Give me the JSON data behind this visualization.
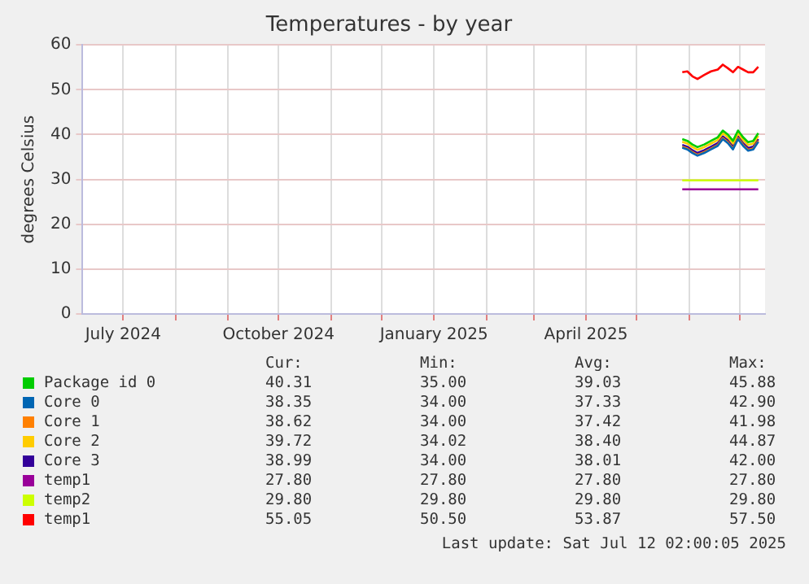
{
  "chart_data": {
    "type": "line",
    "title": "Temperatures - by year",
    "ylabel": "degrees Celsius",
    "x": [
      "2025-05-28",
      "2025-05-31",
      "2025-06-03",
      "2025-06-06",
      "2025-06-10",
      "2025-06-14",
      "2025-06-18",
      "2025-06-21",
      "2025-06-24",
      "2025-06-27",
      "2025-06-30",
      "2025-07-03",
      "2025-07-06",
      "2025-07-09",
      "2025-07-12"
    ],
    "series": [
      {
        "name": "Package id 0",
        "color": "#00cc00",
        "values": [
          39.0,
          38.6,
          37.8,
          37.2,
          37.8,
          38.6,
          39.4,
          40.9,
          40.0,
          38.6,
          40.9,
          39.4,
          38.3,
          38.6,
          40.3
        ]
      },
      {
        "name": "Core 0",
        "color": "#0066b3",
        "values": [
          37.1,
          36.7,
          35.9,
          35.3,
          35.9,
          36.7,
          37.5,
          39.0,
          38.1,
          36.7,
          39.0,
          37.5,
          36.4,
          36.7,
          38.4
        ]
      },
      {
        "name": "Core 1",
        "color": "#ff8000",
        "values": [
          37.3,
          36.9,
          36.1,
          35.5,
          36.1,
          36.9,
          37.7,
          39.2,
          38.3,
          36.9,
          39.2,
          37.7,
          36.6,
          36.9,
          38.6
        ]
      },
      {
        "name": "Core 2",
        "color": "#ffcc00",
        "values": [
          38.4,
          38.0,
          37.2,
          36.6,
          37.2,
          38.0,
          38.8,
          40.3,
          39.4,
          38.0,
          40.3,
          38.8,
          37.7,
          38.0,
          39.7
        ]
      },
      {
        "name": "Core 3",
        "color": "#330099",
        "values": [
          37.7,
          37.3,
          36.5,
          35.9,
          36.5,
          37.3,
          38.1,
          39.6,
          38.7,
          37.3,
          39.6,
          38.1,
          37.0,
          37.3,
          39.0
        ]
      },
      {
        "name": "temp1",
        "color": "#990099",
        "values": [
          27.8,
          27.8,
          27.8,
          27.8,
          27.8,
          27.8,
          27.8,
          27.8,
          27.8,
          27.8,
          27.8,
          27.8,
          27.8,
          27.8,
          27.8
        ]
      },
      {
        "name": "temp2",
        "color": "#ccff00",
        "values": [
          29.8,
          29.8,
          29.8,
          29.8,
          29.8,
          29.8,
          29.8,
          29.8,
          29.8,
          29.8,
          29.8,
          29.8,
          29.8,
          29.8,
          29.8
        ]
      },
      {
        "name": "temp1",
        "color": "#ff0000",
        "values": [
          53.9,
          54.1,
          53.0,
          52.4,
          53.3,
          54.1,
          54.5,
          55.6,
          54.8,
          53.9,
          55.1,
          54.5,
          53.9,
          53.9,
          55.1
        ]
      }
    ],
    "xlim": [
      "2024-06-07",
      "2025-07-16"
    ],
    "xticks": [
      {
        "value": "2024-07-01",
        "label": "July 2024"
      },
      {
        "value": "2024-08-01",
        "label": null
      },
      {
        "value": "2024-09-01",
        "label": null
      },
      {
        "value": "2024-10-01",
        "label": "October 2024"
      },
      {
        "value": "2024-11-01",
        "label": null
      },
      {
        "value": "2024-12-01",
        "label": null
      },
      {
        "value": "2025-01-01",
        "label": "January 2025"
      },
      {
        "value": "2025-02-01",
        "label": null
      },
      {
        "value": "2025-03-01",
        "label": null
      },
      {
        "value": "2025-04-01",
        "label": "April 2025"
      },
      {
        "value": "2025-05-01",
        "label": null
      },
      {
        "value": "2025-06-01",
        "label": null
      },
      {
        "value": "2025-07-01",
        "label": null
      }
    ],
    "ylim": [
      0,
      60
    ],
    "yticks": [
      0,
      10,
      20,
      30,
      40,
      50,
      60
    ],
    "grid": true,
    "legend": "bottom",
    "marker": "none",
    "line_style": "solid",
    "annotations": [
      "Cur:",
      "Min:",
      "Avg:",
      "Max:",
      "40.31",
      "35.00",
      "39.03",
      "45.88",
      "38.35",
      "34.00",
      "37.33",
      "42.90",
      "38.62",
      "34.00",
      "37.42",
      "41.98",
      "39.72",
      "34.02",
      "38.40",
      "44.87",
      "38.99",
      "34.00",
      "38.01",
      "42.00",
      "27.80",
      "27.80",
      "27.80",
      "27.80",
      "29.80",
      "29.80",
      "29.80",
      "29.80",
      "55.05",
      "50.50",
      "53.87",
      "57.50",
      "Last update: Sat Jul 12 02:00:05 2025"
    ]
  }
}
